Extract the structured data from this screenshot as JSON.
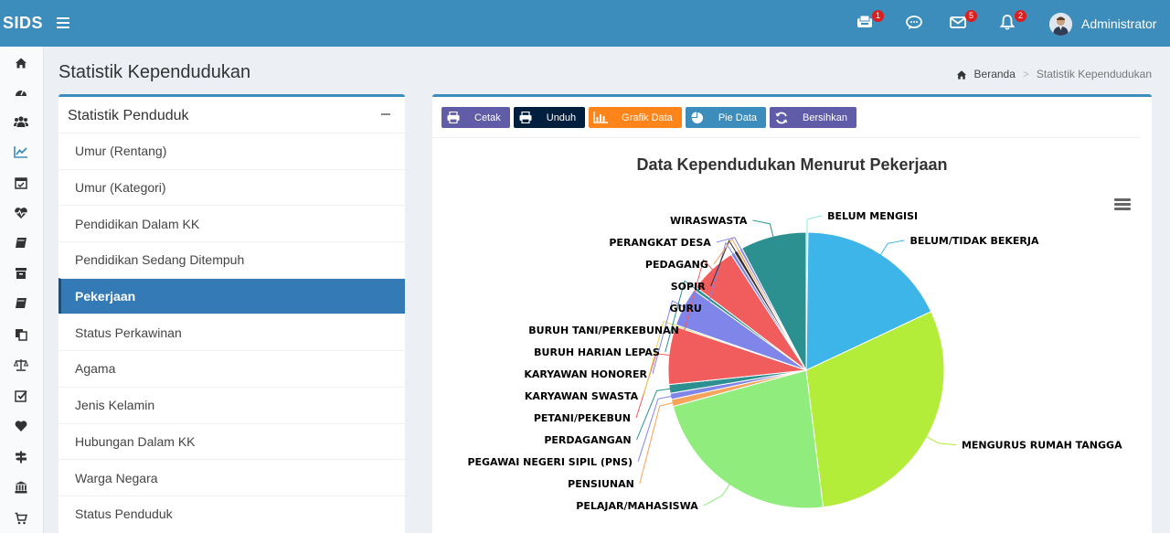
{
  "app": {
    "logo": "SIDS"
  },
  "header": {
    "notifications": [
      {
        "icon": "inbox-tray-icon",
        "count": "1"
      },
      {
        "icon": "chat-bubble-icon",
        "count": ""
      },
      {
        "icon": "envelope-icon",
        "count": "5"
      },
      {
        "icon": "bell-icon",
        "count": "2"
      }
    ],
    "user_name": "Administrator"
  },
  "sidebar_icons": [
    "home-icon",
    "dashboard-icon",
    "users-icon",
    "line-chart-icon",
    "calendar-check-icon",
    "heartbeat-icon",
    "book-icon",
    "archive-icon",
    "book-icon",
    "copy-icon",
    "balance-scale-icon",
    "check-square-icon",
    "heart-icon",
    "signpost-icon",
    "bank-icon",
    "cart-icon"
  ],
  "page": {
    "title": "Statistik Kependudukan"
  },
  "breadcrumb": {
    "home": "Beranda",
    "current": "Statistik Kependudukan"
  },
  "left_box": {
    "title": "Statistik Penduduk",
    "items": [
      "Umur (Rentang)",
      "Umur (Kategori)",
      "Pendidikan Dalam KK",
      "Pendidikan Sedang Ditempuh",
      "Pekerjaan",
      "Status Perkawinan",
      "Agama",
      "Jenis Kelamin",
      "Hubungan Dalam KK",
      "Warga Negara",
      "Status Penduduk"
    ],
    "active_index": 4
  },
  "toolbar": {
    "buttons": [
      {
        "label": "Cetak",
        "color": "#605ca8",
        "icon": "printer-icon"
      },
      {
        "label": "Unduh",
        "color": "#001f3f",
        "icon": "printer-icon"
      },
      {
        "label": "Grafik Data",
        "color": "#ff851b",
        "icon": "bar-chart-icon"
      },
      {
        "label": "Pie Data",
        "color": "#3c8dbc",
        "icon": "pie-chart-icon"
      },
      {
        "label": "Bersihkan",
        "color": "#605ca8",
        "icon": "refresh-icon"
      }
    ]
  },
  "chart_data": {
    "type": "pie",
    "title": "Data Kependudukan Menurut Pekerjaan",
    "slices": [
      {
        "label": "BELUM MENGISI",
        "value": 0.2,
        "color": "#8be9e0"
      },
      {
        "label": "BELUM/TIDAK BEKERJA",
        "value": 17.3,
        "color": "#3db5e8"
      },
      {
        "label": "MENGURUS RUMAH TANGGA",
        "value": 29.2,
        "color": "#b3ec39"
      },
      {
        "label": "PELAJAR/MAHASISWA",
        "value": 22.1,
        "color": "#90ed7d"
      },
      {
        "label": "PENSIUNAN",
        "value": 0.8,
        "color": "#f7a35c"
      },
      {
        "label": "PEGAWAI NEGERI SIPIL (PNS)",
        "value": 0.7,
        "color": "#8085e9"
      },
      {
        "label": "PERDAGANGAN",
        "value": 1.0,
        "color": "#2b908f"
      },
      {
        "label": "PETANI/PEKEBUN",
        "value": 6.6,
        "color": "#f15c5c"
      },
      {
        "label": "KARYAWAN SWASTA",
        "value": 0.2,
        "color": "#e4d354"
      },
      {
        "label": "KARYAWAN HONORER",
        "value": 4.4,
        "color": "#8085e9"
      },
      {
        "label": "BURUH HARIAN LEPAS",
        "value": 0.4,
        "color": "#2b908f"
      },
      {
        "label": "BURUH TANI/PERKEBUNAN",
        "value": 5.4,
        "color": "#f15c5c"
      },
      {
        "label": "GURU",
        "value": 0.4,
        "color": "#8085e9"
      },
      {
        "label": "SOPIR",
        "value": 0.4,
        "color": "#333333"
      },
      {
        "label": "PEDAGANG",
        "value": 0.3,
        "color": "#f7a35c"
      },
      {
        "label": "PERANGKAT DESA",
        "value": 0.3,
        "color": "#8085e9"
      },
      {
        "label": "WIRASWASTA",
        "value": 7.5,
        "color": "#2b908f"
      }
    ]
  }
}
